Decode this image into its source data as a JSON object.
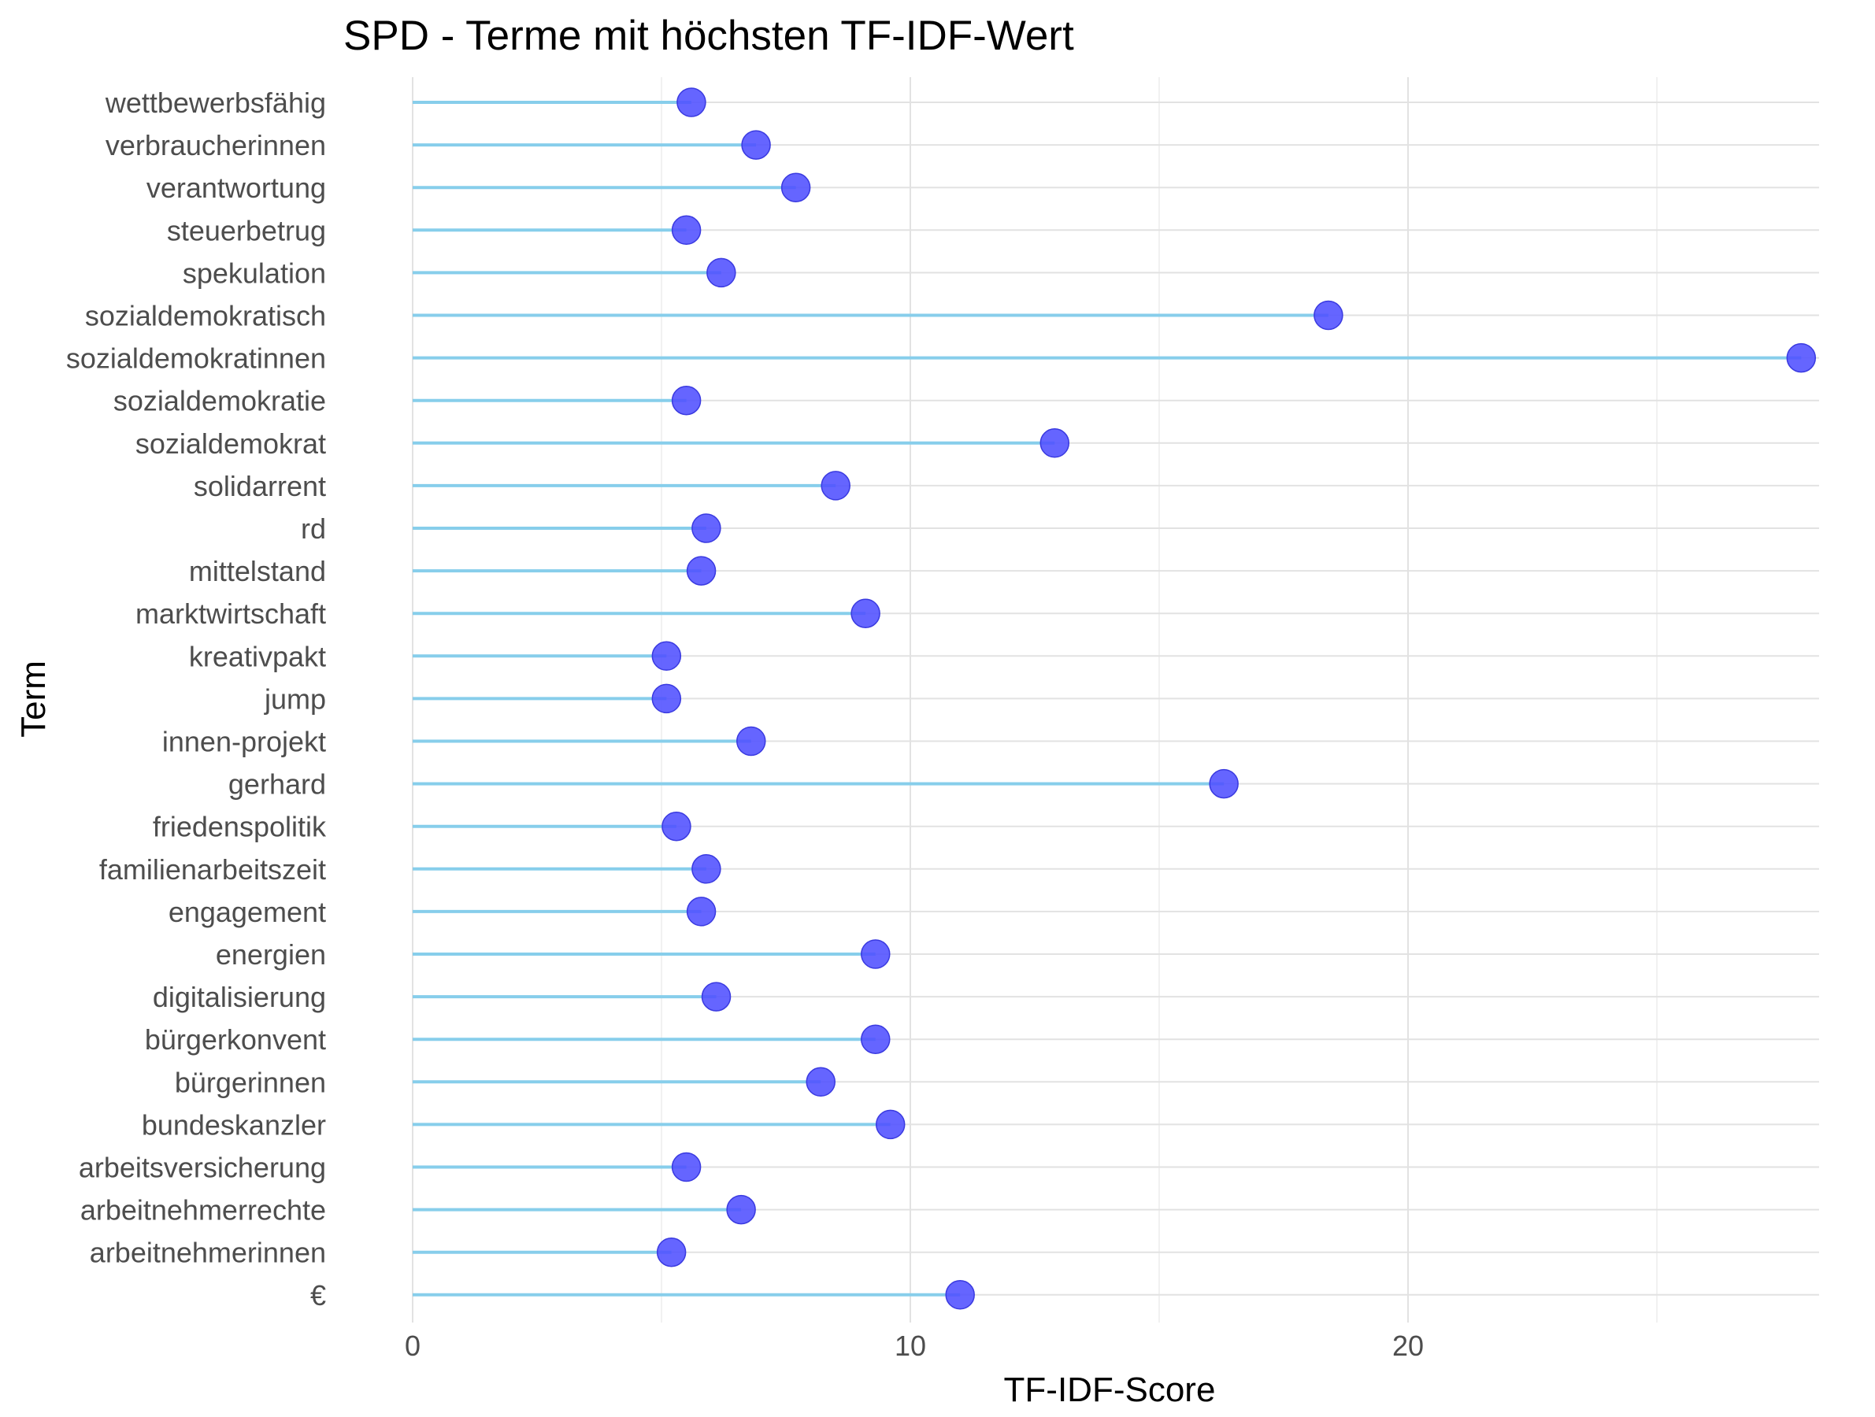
{
  "chart_data": {
    "type": "lollipop",
    "title": "SPD - Terme mit höchsten TF-IDF-Wert",
    "xlabel": "TF-IDF-Score",
    "ylabel": "Term",
    "xlim": [
      0,
      28
    ],
    "x_ticks": [
      0,
      10,
      20
    ],
    "grid": true,
    "colors": {
      "segment": "#87ceeb",
      "point": "#5050ff",
      "point_edge": "#3a3ae0"
    },
    "categories": [
      "wettbewerbsfähig",
      "verbraucherinnen",
      "verantwortung",
      "steuerbetrug",
      "spekulation",
      "sozialdemokratisch",
      "sozialdemokratinnen",
      "sozialdemokratie",
      "sozialdemokrat",
      "solidarrent",
      "rd",
      "mittelstand",
      "marktwirtschaft",
      "kreativpakt",
      "jump",
      "innen-projekt",
      "gerhard",
      "friedenspolitik",
      "familienarbeitszeit",
      "engagement",
      "energien",
      "digitalisierung",
      "bürgerkonvent",
      "bürgerinnen",
      "bundeskanzler",
      "arbeitsversicherung",
      "arbeitnehmerrechte",
      "arbeitnehmerinnen",
      "€"
    ],
    "values": [
      5.6,
      6.9,
      7.7,
      5.5,
      6.2,
      18.4,
      27.9,
      5.5,
      12.9,
      8.5,
      5.9,
      5.8,
      9.1,
      5.1,
      5.1,
      6.8,
      16.3,
      5.3,
      5.9,
      5.8,
      9.3,
      6.1,
      9.3,
      8.2,
      9.6,
      5.5,
      6.6,
      5.2,
      11.0
    ]
  }
}
